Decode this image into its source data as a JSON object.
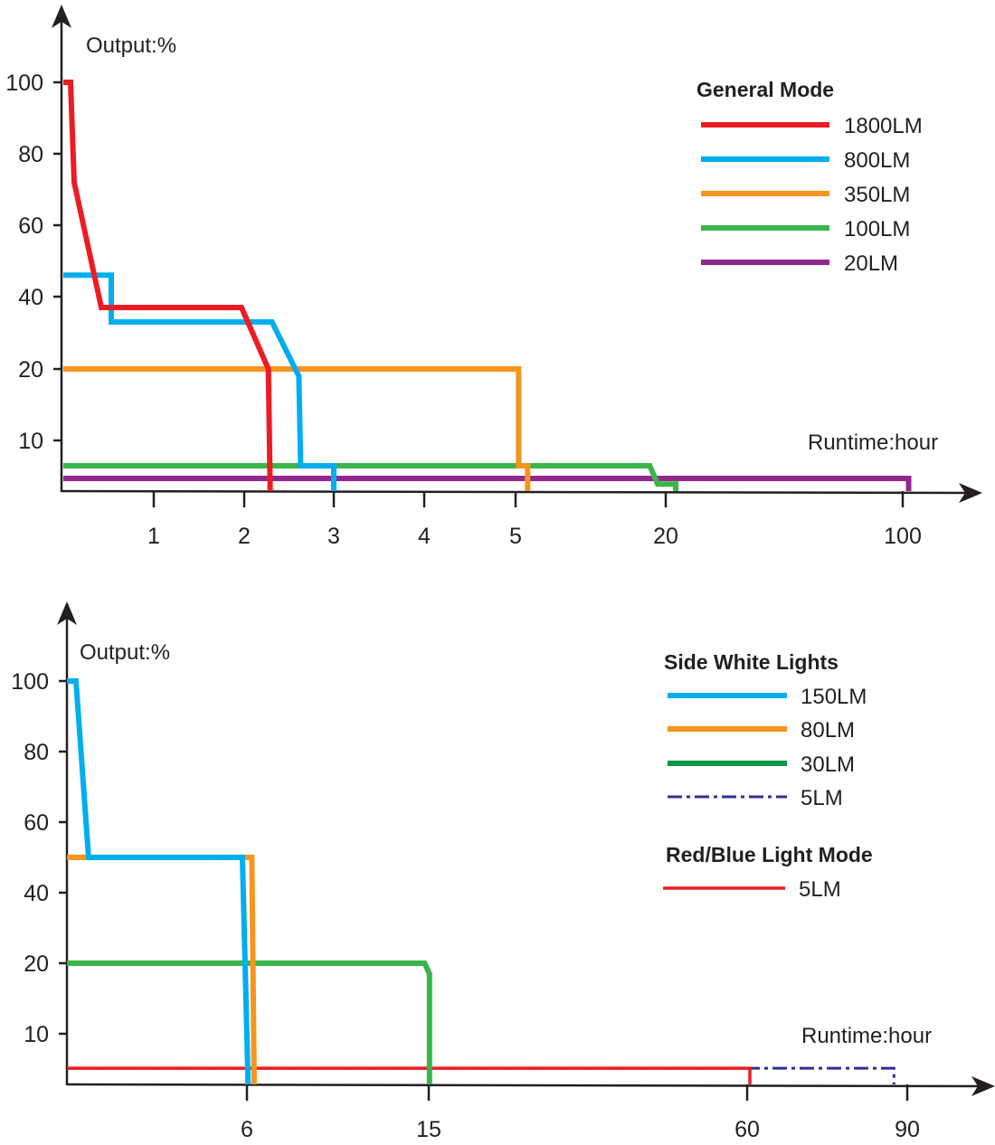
{
  "chart_data": [
    {
      "type": "line",
      "ylabel": "Output:%",
      "xlabel": "Runtime:hour",
      "legend_title": "General Mode",
      "legend_position": "top-right",
      "grid": false,
      "x_scale": "non-uniform (ticks equally spaced up to 5, then 20, 100)",
      "y_scale": "non-uniform (ticks equally spaced)",
      "x_ticks": [
        1,
        2,
        3,
        4,
        5,
        20,
        100
      ],
      "y_ticks": [
        10,
        20,
        40,
        60,
        80,
        100
      ],
      "series": [
        {
          "name": "1800LM",
          "color": "#ED1C24",
          "points": [
            [
              0,
              100
            ],
            [
              0.08,
              100
            ],
            [
              0.12,
              72
            ],
            [
              0.42,
              37
            ],
            [
              1.97,
              37
            ],
            [
              2.27,
              20
            ],
            [
              2.29,
              0
            ]
          ]
        },
        {
          "name": "800LM",
          "color": "#00AEEF",
          "points": [
            [
              0,
              46
            ],
            [
              0.53,
              46
            ],
            [
              0.53,
              33
            ],
            [
              2.31,
              33
            ],
            [
              2.61,
              19
            ],
            [
              2.63,
              5
            ],
            [
              3,
              5
            ],
            [
              3,
              0
            ]
          ]
        },
        {
          "name": "350LM",
          "color": "#F7941D",
          "points": [
            [
              0,
              20
            ],
            [
              5.3,
              20
            ],
            [
              5.3,
              5
            ],
            [
              6.2,
              5
            ],
            [
              6.2,
              0
            ]
          ]
        },
        {
          "name": "100LM",
          "color": "#39B54A",
          "points": [
            [
              0,
              5
            ],
            [
              18.4,
              5
            ],
            [
              19.2,
              1.4
            ],
            [
              23.4,
              1.4
            ],
            [
              23.4,
              0
            ]
          ]
        },
        {
          "name": "20LM",
          "color": "#92278F",
          "points": [
            [
              0,
              2.5
            ],
            [
              102,
              2.5
            ],
            [
              102,
              0
            ]
          ]
        }
      ]
    },
    {
      "type": "line",
      "ylabel": "Output:%",
      "xlabel": "Runtime:hour",
      "legend_title": "Side White Lights",
      "legend_title_2": "Red/Blue Light Mode",
      "legend_position": "top-right",
      "grid": false,
      "x_scale": "non-uniform",
      "y_scale": "non-uniform (ticks equally spaced)",
      "x_ticks": [
        6,
        15,
        60,
        90
      ],
      "y_ticks": [
        10,
        20,
        40,
        60,
        80,
        100
      ],
      "series": [
        {
          "name": "150LM",
          "group": "Side White Lights",
          "color": "#00AEEF",
          "style": "solid",
          "points": [
            [
              0,
              100
            ],
            [
              0.3,
              100
            ],
            [
              0.72,
              50
            ],
            [
              5.85,
              50
            ],
            [
              6.06,
              0
            ]
          ]
        },
        {
          "name": "80LM",
          "group": "Side White Lights",
          "color": "#F7941D",
          "style": "solid",
          "points": [
            [
              0,
              50
            ],
            [
              6.24,
              50
            ],
            [
              6.36,
              0
            ]
          ]
        },
        {
          "name": "30LM",
          "group": "Side White Lights",
          "color": "#39B54A",
          "legend_color": "#009444",
          "style": "solid",
          "points": [
            [
              0,
              20
            ],
            [
              14.8,
              20
            ],
            [
              15.1,
              18.5
            ],
            [
              15.1,
              0
            ]
          ]
        },
        {
          "name": "5LM",
          "group": "Side White Lights",
          "color": "#2E3192",
          "style": "dash-dot",
          "points": [
            [
              0,
              3.2
            ],
            [
              87.5,
              3.2
            ],
            [
              87.5,
              0
            ]
          ]
        },
        {
          "name": "5LM",
          "group": "Red/Blue Light Mode",
          "color": "#ED1C24",
          "style": "solid-thin",
          "points": [
            [
              0,
              3.2
            ],
            [
              60.5,
              3.2
            ],
            [
              60.5,
              0
            ]
          ]
        }
      ]
    }
  ]
}
